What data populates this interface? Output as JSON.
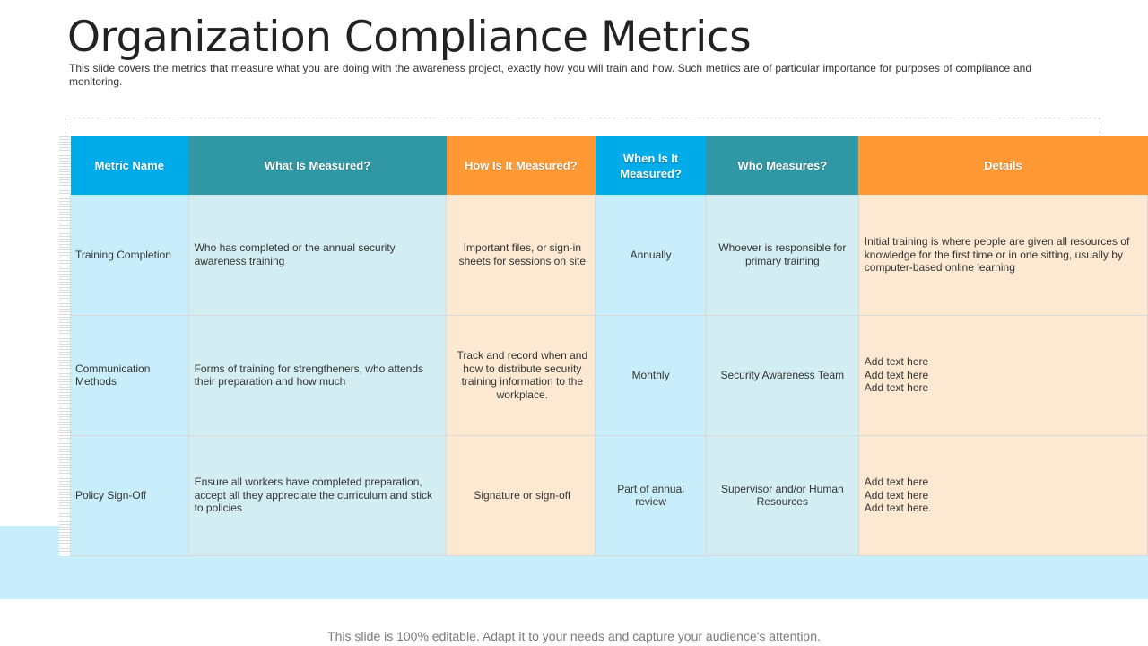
{
  "title": "Organization Compliance Metrics",
  "subtitle": "This slide covers the metrics that measure what you are doing with the awareness project, exactly how you will train and how. Such metrics are of particular importance for purposes of compliance and monitoring.",
  "table": {
    "headers": [
      "Metric Name",
      "What Is Measured?",
      "How Is It Measured?",
      "When Is It Measured?",
      "Who Measures?",
      "Details"
    ],
    "rows": [
      {
        "metric": "Training Completion",
        "what": "Who has completed or the annual security awareness training",
        "how": "Important files, or sign-in sheets for sessions on site",
        "when": "Annually",
        "who": "Whoever is responsible for primary training",
        "details": [
          "Initial training is where people are given all resources of knowledge for the first time or in one sitting, usually by computer-based online learning"
        ]
      },
      {
        "metric": "Communication Methods",
        "what": "Forms of training for strengtheners, who attends their preparation and how much",
        "how": "Track and record when and how to distribute security training information to the workplace.",
        "when": "Monthly",
        "who": "Security Awareness Team",
        "details": [
          "Add text here",
          "Add text here",
          "Add text here"
        ]
      },
      {
        "metric": "Policy Sign-Off",
        "what": "Ensure all workers have completed preparation, accept all they appreciate the curriculum and stick to policies",
        "how": "Signature or sign-off",
        "when": "Part of annual review",
        "who": "Supervisor and/or Human Resources",
        "details": [
          "Add text here",
          "Add text here",
          "Add text here."
        ]
      }
    ]
  },
  "footer": "This slide is 100% editable. Adapt it to your needs and capture your audience's attention.",
  "colors": {
    "header_blue": "#00abea",
    "header_teal": "#2f98a4",
    "header_orange": "#fe9935",
    "cell_blue": "#c9eefb",
    "cell_teal": "#d3eef2",
    "cell_orange": "#fde8d1"
  }
}
